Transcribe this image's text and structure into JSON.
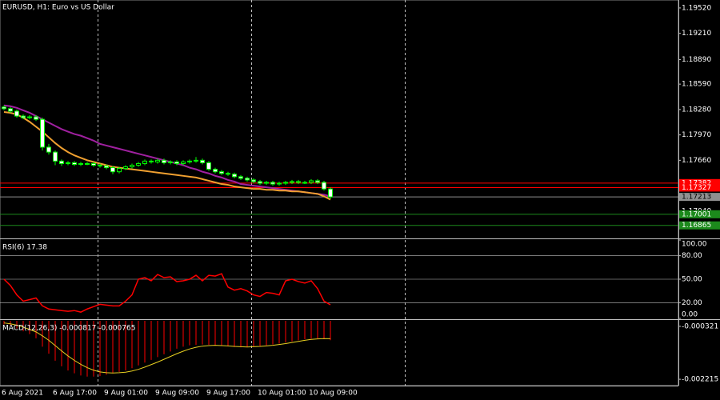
{
  "chart_data": [
    {
      "type": "candlestick",
      "title": "EURUSD, H1:  Euro vs US Dollar",
      "categories": [
        "6 Aug 2021",
        null,
        null,
        null,
        null,
        null,
        null,
        null,
        "6 Aug 17:00",
        null,
        null,
        null,
        null,
        null,
        null,
        null,
        "9 Aug 01:00",
        null,
        null,
        null,
        null,
        null,
        null,
        null,
        "9 Aug 09:00",
        null,
        null,
        null,
        null,
        null,
        null,
        null,
        "9 Aug 17:00",
        null,
        null,
        null,
        null,
        null,
        null,
        null,
        "10 Aug 01:00",
        null,
        null,
        null,
        null,
        null,
        null,
        null,
        "10 Aug 09:00",
        null,
        null,
        null
      ],
      "open": [
        1.1831,
        1.1829,
        1.1826,
        1.182,
        1.1818,
        1.1819,
        1.1816,
        1.1782,
        1.1776,
        1.1765,
        1.1762,
        1.1763,
        1.1761,
        1.1762,
        1.1762,
        1.176,
        1.1759,
        1.1757,
        1.1752,
        1.1756,
        1.1758,
        1.176,
        1.1762,
        1.1765,
        1.1764,
        1.1766,
        1.1763,
        1.1764,
        1.1762,
        1.1764,
        1.1765,
        1.1766,
        1.1763,
        1.1755,
        1.1752,
        1.175,
        1.1749,
        1.1746,
        1.1744,
        1.1742,
        1.174,
        1.1738,
        1.1739,
        1.1737,
        1.1738,
        1.1739,
        1.174,
        1.1739,
        1.1739,
        1.1741,
        1.1739,
        1.1731
      ],
      "high": [
        1.1833,
        1.1831,
        1.1828,
        1.1822,
        1.1821,
        1.1821,
        1.1818,
        1.1786,
        1.1778,
        1.1767,
        1.1765,
        1.1765,
        1.1764,
        1.1764,
        1.1764,
        1.1762,
        1.1761,
        1.1759,
        1.1758,
        1.176,
        1.1762,
        1.1764,
        1.1767,
        1.1767,
        1.1768,
        1.1768,
        1.1766,
        1.1766,
        1.1766,
        1.1767,
        1.177,
        1.1768,
        1.1765,
        1.1757,
        1.1754,
        1.1752,
        1.1751,
        1.1748,
        1.1746,
        1.1744,
        1.1742,
        1.1741,
        1.1741,
        1.174,
        1.1741,
        1.1742,
        1.1742,
        1.1741,
        1.1743,
        1.1743,
        1.1741,
        1.1733
      ],
      "low": [
        1.1827,
        1.1824,
        1.1818,
        1.1816,
        1.1816,
        1.1814,
        1.1778,
        1.1773,
        1.176,
        1.1759,
        1.176,
        1.1759,
        1.1759,
        1.176,
        1.1758,
        1.1757,
        1.1755,
        1.1749,
        1.175,
        1.1754,
        1.1756,
        1.1758,
        1.176,
        1.1762,
        1.1762,
        1.1761,
        1.1761,
        1.176,
        1.176,
        1.1762,
        1.1763,
        1.1761,
        1.1753,
        1.175,
        1.1748,
        1.1747,
        1.1744,
        1.1742,
        1.174,
        1.1738,
        1.1736,
        1.1736,
        1.1735,
        1.1735,
        1.1736,
        1.1737,
        1.1737,
        1.1737,
        1.1737,
        1.1737,
        1.1729,
        1.1719
      ],
      "close": [
        1.1829,
        1.1826,
        1.182,
        1.1818,
        1.1819,
        1.1816,
        1.1782,
        1.1776,
        1.1765,
        1.1762,
        1.1763,
        1.1761,
        1.1762,
        1.1762,
        1.176,
        1.1759,
        1.1757,
        1.1752,
        1.1756,
        1.1758,
        1.176,
        1.1762,
        1.1765,
        1.1764,
        1.1766,
        1.1763,
        1.1764,
        1.1762,
        1.1764,
        1.1765,
        1.1766,
        1.1763,
        1.1755,
        1.1752,
        1.175,
        1.1749,
        1.1746,
        1.1744,
        1.1742,
        1.174,
        1.1738,
        1.1739,
        1.1737,
        1.1738,
        1.1739,
        1.174,
        1.1739,
        1.1739,
        1.1741,
        1.1739,
        1.1731,
        1.17213
      ],
      "up_color": "#000000",
      "down_color": "#ffffff",
      "wick_color": "#00ff00",
      "series": [
        {
          "color": "#a020a0",
          "values": [
            1.1833,
            1.1832,
            1.183,
            1.1827,
            1.1824,
            1.182,
            1.1816,
            1.1812,
            1.1808,
            1.1804,
            1.1801,
            1.1798,
            1.1796,
            1.1793,
            1.179,
            1.1786,
            1.1784,
            1.1782,
            1.178,
            1.1778,
            1.1776,
            1.1774,
            1.1772,
            1.177,
            1.1768,
            1.1766,
            1.1764,
            1.1762,
            1.176,
            1.1757,
            1.1755,
            1.1752,
            1.175,
            1.1747,
            1.1745,
            1.1742,
            1.174,
            1.1737,
            1.1736,
            1.1735,
            1.1734,
            1.1733,
            1.1732,
            1.1731,
            1.173,
            1.1729,
            1.1728,
            1.1727,
            1.1726,
            1.1725,
            1.1724,
            1.1722
          ]
        },
        {
          "color": "#f0a030",
          "values": [
            1.1825,
            1.1824,
            1.1822,
            1.1818,
            1.1813,
            1.1807,
            1.1801,
            1.1794,
            1.1787,
            1.1781,
            1.1776,
            1.1772,
            1.1769,
            1.1766,
            1.1764,
            1.1762,
            1.176,
            1.1758,
            1.1757,
            1.1756,
            1.1755,
            1.1754,
            1.1753,
            1.1752,
            1.1751,
            1.175,
            1.1749,
            1.1748,
            1.1747,
            1.1746,
            1.1745,
            1.1743,
            1.1741,
            1.1739,
            1.1737,
            1.1736,
            1.1734,
            1.1733,
            1.1732,
            1.1731,
            1.1731,
            1.173,
            1.173,
            1.1729,
            1.1729,
            1.1728,
            1.1728,
            1.1727,
            1.1726,
            1.1725,
            1.1722,
            1.1718
          ]
        }
      ],
      "ylim": [
        1.16716,
        1.19617
      ],
      "yticks": [
        {
          "value": 1.1952,
          "label": "1.19520"
        },
        {
          "value": 1.1921,
          "label": "1.19210"
        },
        {
          "value": 1.1889,
          "label": "1.18890"
        },
        {
          "value": 1.1859,
          "label": "1.18590"
        },
        {
          "value": 1.1828,
          "label": "1.18280"
        },
        {
          "value": 1.1797,
          "label": "1.17970"
        },
        {
          "value": 1.1766,
          "label": "1.17660"
        },
        {
          "value": 1.1704,
          "label": "1.17040"
        }
      ],
      "levels": [
        {
          "value": 1.17382,
          "label": "1.17382",
          "color": "#ff0000"
        },
        {
          "value": 1.17327,
          "label": "1.17327",
          "color": "#ff0000"
        },
        {
          "value": 1.17213,
          "label": "1.17213",
          "color": "#909090"
        },
        {
          "value": 1.17001,
          "label": "1.17001",
          "color": "#1c8a1c"
        },
        {
          "value": 1.16865,
          "label": "1.16865",
          "color": "#1c8a1c"
        }
      ]
    },
    {
      "type": "line",
      "title": "RSI(6) 17.38",
      "color": "#ff0000",
      "values": [
        50,
        42,
        30,
        22,
        24,
        26,
        16,
        12,
        11,
        10,
        9,
        10,
        8,
        12,
        15,
        18,
        17,
        16,
        16,
        22,
        30,
        50,
        52,
        48,
        56,
        52,
        53,
        47,
        48,
        50,
        55,
        48,
        55,
        54,
        57,
        40,
        36,
        38,
        35,
        30,
        28,
        33,
        32,
        30,
        48,
        50,
        47,
        45,
        48,
        38,
        22,
        17.38
      ],
      "ylim": [
        0,
        100
      ],
      "yticks": [
        {
          "value": 100,
          "label": "100.00"
        },
        {
          "value": 80,
          "label": "80.00"
        },
        {
          "value": 50,
          "label": "50.00"
        },
        {
          "value": 20,
          "label": "20.00"
        },
        {
          "value": 0,
          "label": "0.00"
        }
      ]
    },
    {
      "type": "macd",
      "title": "MACD(12,26,3) -0.000817 -0.000765",
      "color": "#ff0000",
      "signal_color": "#e8d020",
      "values": [
        -0.00025,
        -0.0003,
        -0.0004,
        -0.0005,
        -0.0006,
        -0.00075,
        -0.00105,
        -0.0013,
        -0.00155,
        -0.00175,
        -0.0019,
        -0.002,
        -0.00208,
        -0.00212,
        -0.00212,
        -0.0021,
        -0.00205,
        -0.002,
        -0.00195,
        -0.0019,
        -0.00182,
        -0.00172,
        -0.00162,
        -0.00152,
        -0.00142,
        -0.00132,
        -0.00122,
        -0.00112,
        -0.00105,
        -0.001,
        -0.00098,
        -0.00097,
        -0.00098,
        -0.001,
        -0.00102,
        -0.00104,
        -0.00106,
        -0.00107,
        -0.00106,
        -0.00104,
        -0.00102,
        -0.001,
        -0.00097,
        -0.00094,
        -0.0009,
        -0.00086,
        -0.00082,
        -0.00078,
        -0.00076,
        -0.00075,
        -0.00078,
        -0.000817
      ],
      "signal": [
        -0.0002,
        -0.00023,
        -0.00028,
        -0.00035,
        -0.00043,
        -0.00052,
        -0.00066,
        -0.00082,
        -0.00101,
        -0.0012,
        -0.00138,
        -0.00154,
        -0.00168,
        -0.0018,
        -0.00189,
        -0.00195,
        -0.00198,
        -0.00199,
        -0.00198,
        -0.00196,
        -0.00192,
        -0.00186,
        -0.00178,
        -0.00169,
        -0.0016,
        -0.0015,
        -0.0014,
        -0.0013,
        -0.00121,
        -0.00113,
        -0.00107,
        -0.00103,
        -0.00101,
        -0.001,
        -0.00101,
        -0.00102,
        -0.00104,
        -0.00105,
        -0.00106,
        -0.00105,
        -0.00104,
        -0.00102,
        -0.001,
        -0.00097,
        -0.00094,
        -0.0009,
        -0.00086,
        -0.00082,
        -0.00079,
        -0.00077,
        -0.00076,
        -0.000765
      ],
      "ylim": [
        -0.002441,
        -0.000123
      ],
      "yticks": [
        -0.000321,
        -0.002215
      ]
    }
  ]
}
